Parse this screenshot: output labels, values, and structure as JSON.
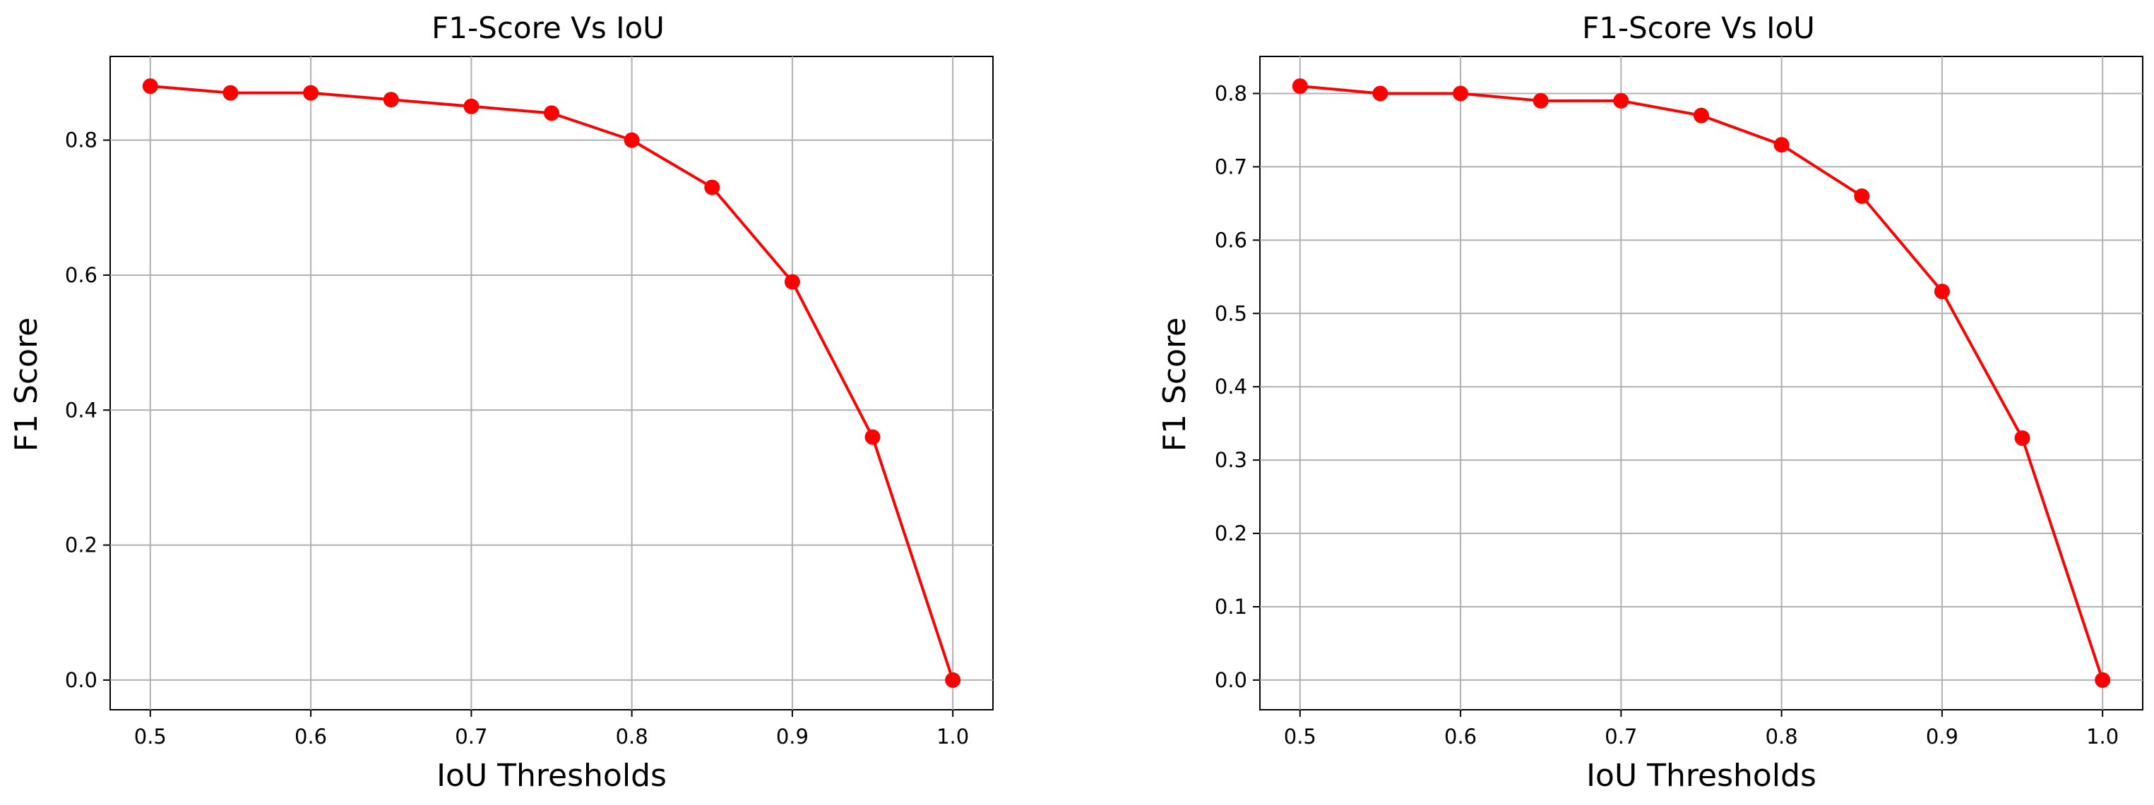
{
  "colors": {
    "series": "#ff0000",
    "grid": "#b0b0b0",
    "axes": "#000000"
  },
  "chart_data": [
    {
      "type": "line",
      "title": "F1-Score Vs IoU",
      "xlabel": "IoU Thresholds",
      "ylabel": "F1 Score",
      "x": [
        0.5,
        0.55,
        0.6,
        0.65,
        0.7,
        0.75,
        0.8,
        0.85,
        0.9,
        0.95,
        1.0
      ],
      "series": [
        {
          "values": [
            0.88,
            0.87,
            0.87,
            0.86,
            0.85,
            0.84,
            0.8,
            0.73,
            0.59,
            0.36,
            0.0
          ]
        }
      ],
      "xlim": [
        0.475,
        1.025
      ],
      "ylim": [
        -0.044,
        0.924
      ],
      "xticks": [
        0.5,
        0.6,
        0.7,
        0.8,
        0.9,
        1.0
      ],
      "xtick_labels": [
        "0.5",
        "0.6",
        "0.7",
        "0.8",
        "0.9",
        "1.0"
      ],
      "yticks": [
        0.0,
        0.2,
        0.4,
        0.6,
        0.8
      ],
      "ytick_labels": [
        "0.0",
        "0.2",
        "0.4",
        "0.6",
        "0.8"
      ],
      "grid": true
    },
    {
      "type": "line",
      "title": "F1-Score Vs IoU",
      "xlabel": "IoU Thresholds",
      "ylabel": "F1 Score",
      "x": [
        0.5,
        0.55,
        0.6,
        0.65,
        0.7,
        0.75,
        0.8,
        0.85,
        0.9,
        0.95,
        1.0
      ],
      "series": [
        {
          "values": [
            0.81,
            0.8,
            0.8,
            0.79,
            0.79,
            0.77,
            0.73,
            0.66,
            0.53,
            0.33,
            0.0
          ]
        }
      ],
      "xlim": [
        0.475,
        1.025
      ],
      "ylim": [
        -0.0405,
        0.8505
      ],
      "xticks": [
        0.5,
        0.6,
        0.7,
        0.8,
        0.9,
        1.0
      ],
      "xtick_labels": [
        "0.5",
        "0.6",
        "0.7",
        "0.8",
        "0.9",
        "1.0"
      ],
      "yticks": [
        0.0,
        0.1,
        0.2,
        0.3,
        0.4,
        0.5,
        0.6,
        0.7,
        0.8
      ],
      "ytick_labels": [
        "0.0",
        "0.1",
        "0.2",
        "0.3",
        "0.4",
        "0.5",
        "0.6",
        "0.7",
        "0.8"
      ],
      "grid": true
    }
  ]
}
